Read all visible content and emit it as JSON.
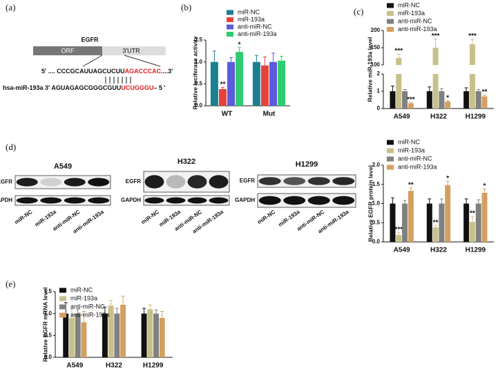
{
  "panel_labels": [
    "(a)",
    "(b)",
    "(c)",
    "(d)",
    "(e)"
  ],
  "diagram_a": {
    "gene": "EGFR",
    "orf": "ORF",
    "utr": "3'UTR",
    "target": {
      "prefix": "5' .... CCCGCAUUAGCUCUU",
      "site": "AGACCCAC",
      "suffix": "....3'"
    },
    "mirna": {
      "prefix": "hsa-miR-193a 3' AGUAGAGCGGGCGUU",
      "site": "UCUGGGU",
      "suffix": "– 5 '"
    }
  },
  "blots_d": {
    "cell_lines": [
      "A549",
      "H322",
      "H1299"
    ],
    "proteins": [
      "EGFR",
      "GAPDH"
    ],
    "lanes": [
      "miR-NC",
      "miR-193a",
      "anti-miR-NC",
      "anti-miR-193a"
    ]
  },
  "chart_data": [
    {
      "type": "bar",
      "ylabel": "Relative luciferase activity",
      "categories": [
        "WT",
        "Mut"
      ],
      "ylim": [
        0,
        1.5
      ],
      "yticks": [
        {
          "value": 0,
          "label": "0.0"
        },
        0.5,
        {
          "value": 1,
          "label": "1.0"
        },
        1.5
      ],
      "series": [
        {
          "name": "miR-NC",
          "color": "#1a7f8e",
          "values": [
            1.0,
            1.0
          ],
          "errors": [
            0.25,
            0.15
          ],
          "labels": [
            null,
            null
          ]
        },
        {
          "name": "miR-193a",
          "color": "#e8413c",
          "values": [
            0.38,
            0.92
          ],
          "errors": [
            0.04,
            0.2
          ],
          "labels": [
            "**",
            null
          ]
        },
        {
          "name": "anti-miR-NC",
          "color": "#5b5bdc",
          "values": [
            1.0,
            1.0
          ],
          "errors": [
            0.1,
            0.2
          ],
          "labels": [
            null,
            null
          ]
        },
        {
          "name": "anti-miR-193a",
          "color": "#2ecc71",
          "values": [
            1.23,
            1.03
          ],
          "errors": [
            0.1,
            0.1
          ],
          "labels": [
            "*",
            null
          ]
        }
      ]
    },
    {
      "type": "bar",
      "ylabel": "Relative miR-193a level",
      "categories": [
        "A549",
        "H322",
        "H1299"
      ],
      "ylim": [
        0,
        2
      ],
      "yticks": [
        0,
        1,
        2
      ],
      "ylim_upper": [
        100,
        200
      ],
      "yticks_upper": [
        100,
        150,
        200
      ],
      "series": [
        {
          "name": "miR-NC",
          "color": "#111111",
          "values": [
            1,
            1,
            1
          ],
          "errors": [
            0.3,
            0.25,
            0.2
          ],
          "labels": [
            null,
            null,
            null
          ]
        },
        {
          "name": "miR-193a",
          "color": "#c8c08a",
          "values": [
            120,
            150,
            160
          ],
          "errors": [
            12,
            25,
            15
          ],
          "labels": [
            "***",
            "***",
            "***"
          ]
        },
        {
          "name": "anti-miR-NC",
          "color": "#808080",
          "values": [
            1,
            1,
            1
          ],
          "errors": [
            0.1,
            0.15,
            0.1
          ],
          "labels": [
            null,
            null,
            null
          ]
        },
        {
          "name": "anti-miR-193a",
          "color": "#d4a060",
          "values": [
            0.3,
            0.4,
            0.7
          ],
          "errors": [
            0.05,
            0.05,
            0.08
          ],
          "labels": [
            "***",
            "*",
            "**"
          ]
        }
      ]
    },
    {
      "type": "bar",
      "ylabel": "Relative EGFR protein level",
      "categories": [
        "A549",
        "H322",
        "H1299"
      ],
      "ylim": [
        0,
        2
      ],
      "yticks": [
        {
          "value": 0,
          "label": "0.0"
        },
        0.5,
        {
          "value": 1,
          "label": "1.0"
        },
        1.5,
        {
          "value": 2,
          "label": "2.0"
        }
      ],
      "series": [
        {
          "name": "miR-NC",
          "color": "#111111",
          "values": [
            1,
            1,
            1
          ],
          "errors": [
            0.15,
            0.12,
            0.12
          ],
          "labels": [
            null,
            null,
            null
          ]
        },
        {
          "name": "miR-193a",
          "color": "#c8c08a",
          "values": [
            0.18,
            0.38,
            0.52
          ],
          "errors": [
            0.07,
            0.05,
            0.15
          ],
          "labels": [
            "***",
            "**",
            "**"
          ]
        },
        {
          "name": "anti-miR-NC",
          "color": "#808080",
          "values": [
            1,
            1,
            1
          ],
          "errors": [
            0.08,
            0.12,
            0.1
          ],
          "labels": [
            null,
            null,
            null
          ]
        },
        {
          "name": "anti-miR-193a",
          "color": "#d4a060",
          "values": [
            1.33,
            1.48,
            1.28
          ],
          "errors": [
            0.08,
            0.1,
            0.1
          ],
          "labels": [
            "**",
            "*",
            "*"
          ]
        }
      ]
    },
    {
      "type": "bar",
      "ylabel": "Relative EGFR mRNA level",
      "categories": [
        "A549",
        "H322",
        "H1299"
      ],
      "ylim": [
        0,
        1.5
      ],
      "yticks": [
        {
          "value": 0,
          "label": "0.0"
        },
        0.5,
        {
          "value": 1,
          "label": "1.0"
        },
        1.5
      ],
      "series": [
        {
          "name": "miR-NC",
          "color": "#111111",
          "values": [
            1,
            1,
            1
          ],
          "errors": [
            0.25,
            0.15,
            0.12
          ],
          "labels": [
            null,
            null,
            null
          ]
        },
        {
          "name": "miR-193a",
          "color": "#c8c08a",
          "values": [
            0.9,
            1.18,
            1.1
          ],
          "errors": [
            0.2,
            0.12,
            0.1
          ],
          "labels": [
            null,
            null,
            null
          ]
        },
        {
          "name": "anti-miR-NC",
          "color": "#808080",
          "values": [
            1,
            1,
            1
          ],
          "errors": [
            0.1,
            0.12,
            0.08
          ],
          "labels": [
            null,
            null,
            null
          ]
        },
        {
          "name": "anti-miR-193a",
          "color": "#d4a060",
          "values": [
            0.8,
            1.2,
            0.9
          ],
          "errors": [
            0.25,
            0.2,
            0.15
          ],
          "labels": [
            null,
            null,
            null
          ]
        }
      ]
    }
  ]
}
